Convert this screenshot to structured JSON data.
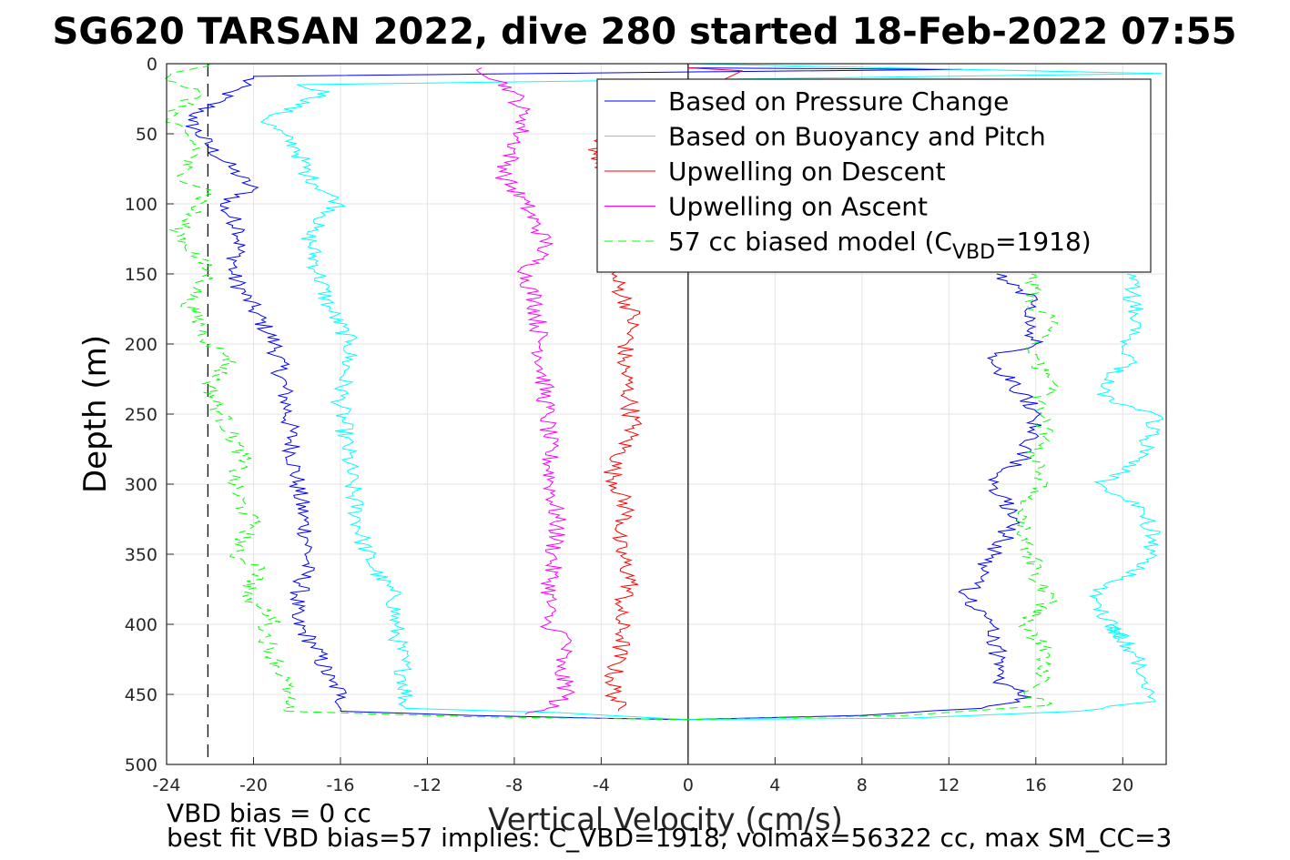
{
  "chart_data": {
    "type": "line",
    "title": "SG620 TARSAN 2022, dive 280 started 18-Feb-2022 07:55",
    "xlabel": "Vertical Velocity (cm/s)",
    "ylabel": "Depth (m)",
    "xlim": [
      -24,
      22
    ],
    "ylim": [
      0,
      500
    ],
    "y_reversed": true,
    "grid": true,
    "legend_position": "top-right",
    "x_ticks": [
      "-24",
      "-20",
      "-16",
      "-12",
      "-8",
      "-4",
      "0",
      "4",
      "8",
      "12",
      "16",
      "20"
    ],
    "y_ticks": [
      "0",
      "50",
      "100",
      "150",
      "200",
      "250",
      "300",
      "350",
      "400",
      "450",
      "500"
    ],
    "reference_lines": [
      {
        "axis": "x",
        "value": 0,
        "style": "solid",
        "color": "#000000"
      },
      {
        "axis": "x",
        "value": -22.1,
        "style": "dashed",
        "color": "#000000"
      }
    ],
    "legend": [
      {
        "label": "Based on Pressure Change",
        "color": "#0000ff",
        "style": "solid"
      },
      {
        "label": "Based on Buoyancy and Pitch",
        "color": "#00ffff",
        "style": "solid"
      },
      {
        "label": "Upwelling on Descent",
        "color": "#ff0000",
        "style": "solid"
      },
      {
        "label": "Upwelling on Ascent",
        "color": "#ff00ff",
        "style": "solid"
      },
      {
        "label_main": "57 cc biased model (C",
        "label_sub": "VBD",
        "label_tail": "=1918)",
        "color": "#00ff00",
        "style": "dashed"
      }
    ],
    "series": [
      {
        "name": "Based on Pressure Change",
        "color": "#0000ff",
        "style": "solid",
        "segments": [
          {
            "x": [
              0,
              12.6,
              -20,
              -21,
              -23,
              -22,
              -21,
              -20,
              -21.5,
              -20.5,
              -21,
              -20,
              -19,
              -18.5,
              -18,
              -17.5,
              -17.5,
              -18.2,
              -17.2,
              -16.5,
              -15.8,
              -16
            ],
            "y": [
              3,
              4,
              9,
              20,
              40,
              60,
              75,
              90,
              100,
              120,
              150,
              175,
              200,
              240,
              300,
              340,
              355,
              395,
              415,
              440,
              452,
              462
            ]
          },
          {
            "x": [
              -16,
              -10,
              -4,
              0
            ],
            "y": [
              462,
              465,
              467,
              468
            ]
          },
          {
            "x": [
              0,
              8,
              13.5,
              15.8,
              14.2,
              14.5,
              13.8,
              14,
              12.8,
              13.5,
              14.5,
              15,
              14,
              15.5,
              16.2,
              15,
              13.8,
              16,
              15.5,
              15.8,
              15.2,
              14.2
            ],
            "y": [
              468,
              465,
              460,
              452,
              440,
              430,
              405,
              400,
              380,
              360,
              340,
              320,
              300,
              280,
              250,
              230,
              210,
              200,
              180,
              170,
              160,
              150
            ]
          }
        ]
      },
      {
        "name": "Based on Buoyancy and Pitch",
        "color": "#00ffff",
        "style": "solid",
        "segments": [
          {
            "x": [
              0,
              21.8,
              -18,
              -16.5,
              -19.5,
              -18,
              -17.5,
              -16,
              -17.5,
              -17,
              -16.5,
              -15.5,
              -16,
              -15.5,
              -15,
              -14.5,
              -13.5,
              -13.5,
              -13,
              -13
            ],
            "y": [
              0,
              7,
              15,
              20,
              40,
              60,
              80,
              100,
              120,
              150,
              175,
              200,
              240,
              300,
              340,
              360,
              380,
              400,
              440,
              460
            ]
          },
          {
            "x": [
              -13,
              -6,
              0,
              10,
              18,
              21.5
            ],
            "y": [
              460,
              463,
              468,
              467,
              462,
              455
            ]
          },
          {
            "x": [
              21.5,
              21,
              20.5,
              19.5,
              20,
              18.5,
              21,
              21.5,
              21,
              20,
              19,
              21,
              21.5,
              20.5,
              19.5,
              19,
              20.5,
              20.2,
              20.8,
              20.5,
              20.2
            ],
            "y": [
              455,
              440,
              420,
              400,
              410,
              380,
              360,
              340,
              320,
              310,
              300,
              280,
              250,
              245,
              242,
              230,
              210,
              200,
              185,
              170,
              150
            ]
          }
        ]
      },
      {
        "name": "Upwelling on Descent",
        "color": "#ff0000",
        "style": "solid",
        "segments": [
          {
            "x": [
              0,
              2.5,
              -4.3,
              -3.2,
              -3.5,
              -2.5,
              -3,
              -2.7,
              -2.5,
              -3.5,
              -2.8,
              -3.3,
              -2.6,
              -3.2,
              -3,
              -3.5,
              -3.2
            ],
            "y": [
              3,
              5,
              55,
              120,
              150,
              180,
              210,
              240,
              260,
              290,
              320,
              340,
              370,
              390,
              410,
              440,
              462
            ]
          }
        ]
      },
      {
        "name": "Upwelling on Ascent",
        "color": "#ff00ff",
        "style": "solid",
        "segments": [
          {
            "x": [
              -9.5,
              -8,
              -7.5,
              -8.5,
              -7.5,
              -6.5,
              -7.5,
              -7,
              -6.8,
              -6.5,
              -6.3,
              -6,
              -6.2,
              -6.5,
              -5.5,
              -6,
              -5.5,
              -6.5,
              -7.5
            ],
            "y": [
              3,
              20,
              40,
              80,
              100,
              130,
              150,
              170,
              200,
              250,
              300,
              330,
              350,
              400,
              410,
              430,
              450,
              460,
              464
            ]
          }
        ]
      },
      {
        "name": "57 cc biased model",
        "color": "#00ff00",
        "style": "dashed",
        "segments": [
          {
            "x": [
              -22,
              -24,
              -22.5,
              -24,
              -22.5,
              -23.5,
              -22,
              -23.5,
              -22,
              -23,
              -22,
              -21,
              -22,
              -21.5,
              -20.5,
              -21,
              -20,
              -21,
              -19.5,
              -20.5,
              -19,
              -19.5,
              -19,
              -18.5,
              -18.5,
              -18.5
            ],
            "y": [
              0,
              10,
              20,
              40,
              60,
              80,
              90,
              120,
              150,
              170,
              200,
              210,
              230,
              250,
              280,
              300,
              330,
              350,
              360,
              380,
              395,
              405,
              425,
              440,
              455,
              462
            ]
          },
          {
            "x": [
              -18.5,
              -10,
              0,
              10,
              16.5
            ],
            "y": [
              462,
              466,
              468,
              465,
              458
            ]
          },
          {
            "x": [
              16.5,
              15.5,
              16.5,
              16.2,
              16.5,
              15.5,
              16.8,
              16,
              15.8,
              15.2,
              16.5,
              15.8,
              16.5,
              16,
              17,
              16.3,
              15.8,
              17,
              15.5,
              16,
              15.8
            ],
            "y": [
              458,
              450,
              440,
              430,
              420,
              400,
              380,
              370,
              350,
              320,
              300,
              280,
              260,
              240,
              230,
              220,
              200,
              185,
              170,
              160,
              150
            ]
          }
        ]
      }
    ]
  },
  "footer": {
    "line1": "VBD bias = 0 cc",
    "line2": "best fit VBD bias=57 implies: C_VBD=1918, volmax=56322 cc, max SM_CC=3"
  }
}
